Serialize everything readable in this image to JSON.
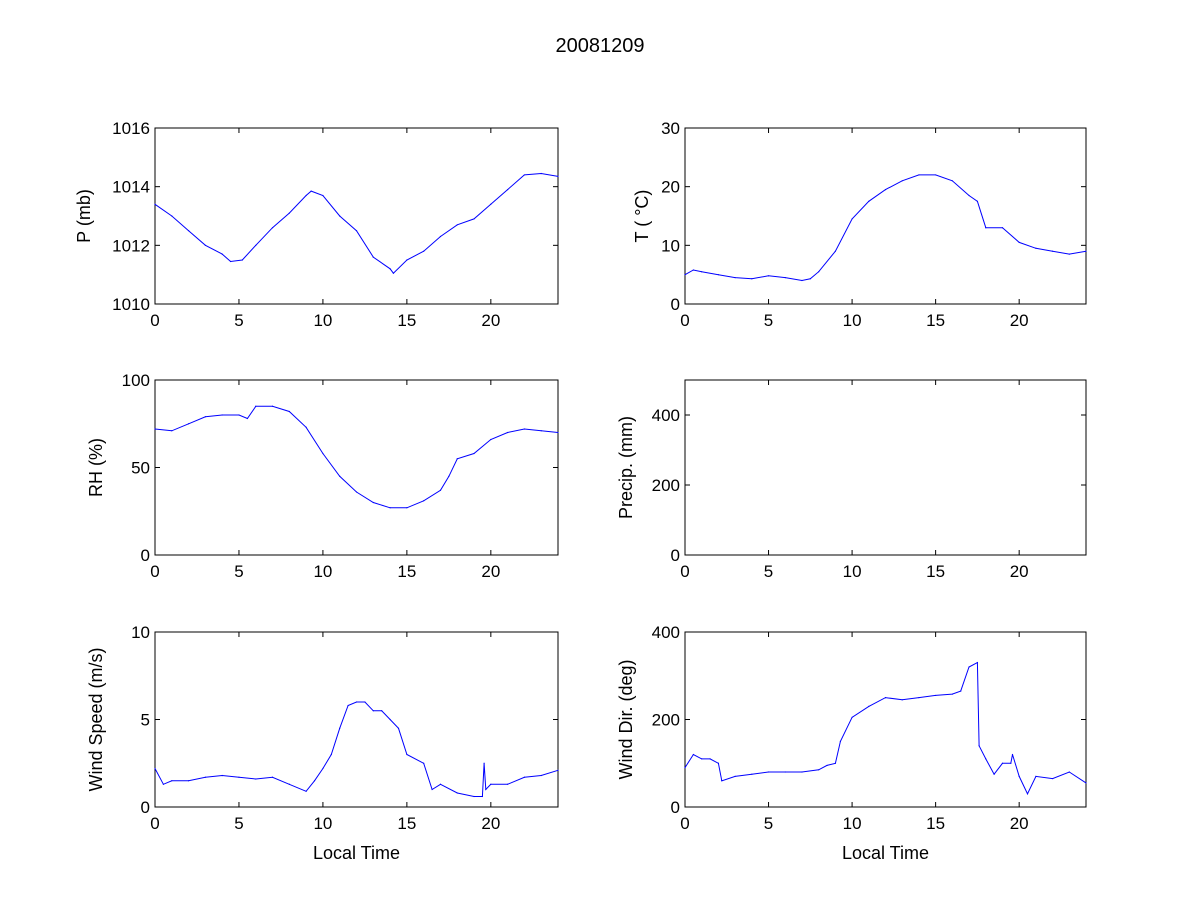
{
  "chart_data": [
    {
      "type": "line",
      "title": "P (mb)",
      "ylabel": "P (mb)",
      "xlabel": "",
      "xlim": [
        0,
        24
      ],
      "ylim": [
        1010,
        1016
      ],
      "xticks": [
        0,
        5,
        10,
        15,
        20
      ],
      "yticks": [
        1010,
        1012,
        1014,
        1016
      ],
      "color": "#0000ff",
      "x": [
        0,
        1,
        2,
        3,
        4,
        4.5,
        5.2,
        6,
        7,
        8,
        9,
        9.3,
        10,
        11,
        12,
        13,
        14,
        14.2,
        15,
        16,
        17,
        18,
        19,
        20,
        21,
        22,
        23,
        24
      ],
      "y": [
        1013.4,
        1013.0,
        1012.5,
        1012.0,
        1011.7,
        1011.45,
        1011.5,
        1012.0,
        1012.6,
        1013.1,
        1013.7,
        1013.85,
        1013.7,
        1013.0,
        1012.5,
        1011.6,
        1011.2,
        1011.05,
        1011.5,
        1011.8,
        1012.3,
        1012.7,
        1012.9,
        1013.4,
        1013.9,
        1014.4,
        1014.45,
        1014.35
      ]
    },
    {
      "type": "line",
      "ylabel": "T ( °C)",
      "xlabel": "",
      "xlim": [
        0,
        24
      ],
      "ylim": [
        0,
        30
      ],
      "xticks": [
        0,
        5,
        10,
        15,
        20
      ],
      "yticks": [
        0,
        10,
        20,
        30
      ],
      "color": "#0000ff",
      "x": [
        0,
        0.5,
        1,
        2,
        3,
        4,
        5,
        6,
        7,
        7.5,
        8,
        9,
        10,
        11,
        12,
        13,
        14,
        15,
        16,
        17,
        17.5,
        18,
        19,
        20,
        21,
        22,
        23,
        24
      ],
      "y": [
        5,
        5.8,
        5.5,
        5,
        4.5,
        4.3,
        4.8,
        4.5,
        4,
        4.3,
        5.5,
        9,
        14.5,
        17.5,
        19.5,
        21,
        22,
        22,
        21,
        18.5,
        17.5,
        13,
        13,
        10.5,
        9.5,
        9,
        8.5,
        9
      ]
    },
    {
      "type": "line",
      "ylabel": "RH (%)",
      "xlabel": "",
      "xlim": [
        0,
        24
      ],
      "ylim": [
        0,
        100
      ],
      "xticks": [
        0,
        5,
        10,
        15,
        20
      ],
      "yticks": [
        0,
        50,
        100
      ],
      "color": "#0000ff",
      "x": [
        0,
        1,
        2,
        3,
        4,
        5,
        5.5,
        6,
        7,
        8,
        9,
        10,
        11,
        12,
        13,
        14,
        15,
        16,
        17,
        17.5,
        18,
        19,
        20,
        21,
        22,
        23,
        24
      ],
      "y": [
        72,
        71,
        75,
        79,
        80,
        80,
        78,
        85,
        85,
        82,
        73,
        58,
        45,
        36,
        30,
        27,
        27,
        31,
        37,
        45,
        55,
        58,
        66,
        70,
        72,
        71,
        70
      ]
    },
    {
      "type": "line",
      "ylabel": "Precip. (mm)",
      "xlabel": "",
      "xlim": [
        0,
        24
      ],
      "ylim": [
        0,
        500
      ],
      "xticks": [
        0,
        5,
        10,
        15,
        20
      ],
      "yticks": [
        0,
        200,
        400
      ],
      "color": "#0000ff",
      "x": [],
      "y": []
    },
    {
      "type": "line",
      "ylabel": "Wind Speed (m/s)",
      "xlabel": "Local Time",
      "xlim": [
        0,
        24
      ],
      "ylim": [
        0,
        10
      ],
      "xticks": [
        0,
        5,
        10,
        15,
        20
      ],
      "yticks": [
        0,
        5,
        10
      ],
      "color": "#0000ff",
      "x": [
        0,
        0.5,
        1,
        2,
        3,
        4,
        5,
        6,
        7,
        8,
        9,
        9.5,
        10,
        10.5,
        11,
        11.5,
        12,
        12.5,
        13,
        13.5,
        14,
        14.5,
        15,
        16,
        16.5,
        17,
        18,
        19,
        19.5,
        19.6,
        19.7,
        20,
        21,
        22,
        23,
        24
      ],
      "y": [
        2.2,
        1.3,
        1.5,
        1.5,
        1.7,
        1.8,
        1.7,
        1.6,
        1.7,
        1.3,
        0.9,
        1.5,
        2.2,
        3,
        4.5,
        5.8,
        6,
        6,
        5.5,
        5.5,
        5,
        4.5,
        3,
        2.5,
        1,
        1.3,
        0.8,
        0.6,
        0.6,
        2.5,
        1,
        1.3,
        1.3,
        1.7,
        1.8,
        2.1
      ]
    },
    {
      "type": "line",
      "ylabel": "Wind Dir. (deg)",
      "xlabel": "Local Time",
      "xlim": [
        0,
        24
      ],
      "ylim": [
        0,
        400
      ],
      "xticks": [
        0,
        5,
        10,
        15,
        20
      ],
      "yticks": [
        0,
        200,
        400
      ],
      "color": "#0000ff",
      "x": [
        0,
        0.5,
        1,
        1.5,
        2,
        2.2,
        3,
        4,
        5,
        6,
        7,
        8,
        8.5,
        9,
        9.3,
        10,
        11,
        12,
        13,
        14,
        15,
        16,
        16.5,
        17,
        17.5,
        17.6,
        18,
        18.5,
        19,
        19.5,
        19.6,
        20,
        20.5,
        21,
        22,
        23,
        24
      ],
      "y": [
        90,
        120,
        110,
        110,
        100,
        60,
        70,
        75,
        80,
        80,
        80,
        85,
        95,
        100,
        150,
        205,
        230,
        250,
        245,
        250,
        255,
        258,
        265,
        320,
        330,
        140,
        110,
        75,
        100,
        100,
        120,
        70,
        30,
        70,
        65,
        80,
        55
      ]
    }
  ],
  "figure_title": "20081209"
}
